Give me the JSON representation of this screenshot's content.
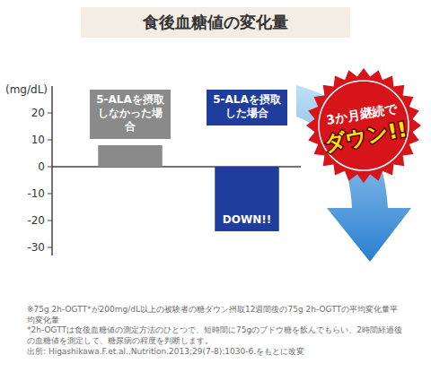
{
  "chart_data": {
    "type": "bar",
    "title": "食後血糖値の変化量",
    "y_label": "(mg/dL)",
    "categories": [
      "5-ALAを摂取しなかった場合",
      "5-ALAを摂取した場合"
    ],
    "values": [
      8,
      -24
    ],
    "colors": [
      "#8a8a8a",
      "#1f3d9c"
    ],
    "ylim": [
      -33,
      30
    ],
    "yticks": [
      -30,
      -20,
      -10,
      0,
      10,
      20
    ],
    "grid": false,
    "annotations": {
      "bar": "DOWN!!",
      "badge": [
        "3か月継続で",
        "ダウン!!"
      ]
    },
    "footnotes": [
      "※75g 2h-OGTT*が200mg/dL以上の被験者の糖ダウン摂取12週間後の75g 2h-OGTTの平均変化量平均変化量",
      "*2h-OGTTは食後血糖値の測定方法のひとつで、短時間に75gのブドウ糖を飲んでもらい、2時間経過後の血糖値を測定して、糖尿病の程度を判断します。",
      "出所: Higashikawa.F.et.al.,Nutrition.2013;29(7-8):1030-6.をもとに改変"
    ]
  }
}
